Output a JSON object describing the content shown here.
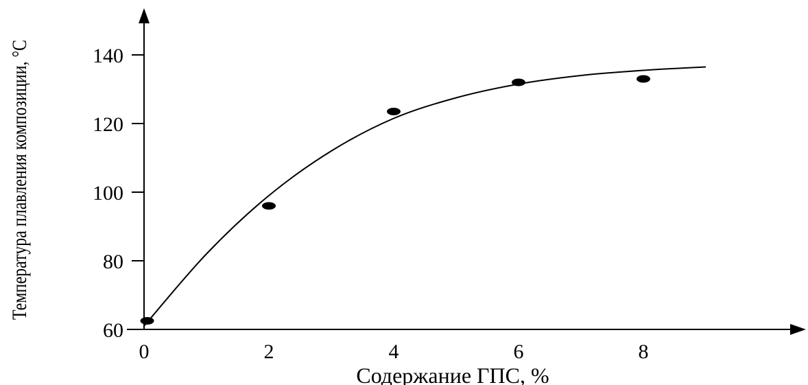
{
  "chart_data": {
    "type": "scatter",
    "title": "",
    "xlabel": "Содержание ГПС, %",
    "ylabel": "Температура плавления композиции, °С",
    "xlim": [
      0,
      9
    ],
    "ylim": [
      60,
      150
    ],
    "x_ticks": [
      0,
      2,
      4,
      6,
      8
    ],
    "x_tick_labels": [
      "0",
      "2",
      "4",
      "6",
      "8"
    ],
    "y_ticks": [
      60,
      80,
      100,
      120,
      140
    ],
    "y_tick_labels": [
      "60",
      "80",
      "100",
      "120",
      "140"
    ],
    "grid": false,
    "legend": "none",
    "series": [
      {
        "kind": "points",
        "x": [
          0.05,
          2,
          4,
          6,
          8
        ],
        "y": [
          62.5,
          96,
          123.5,
          132,
          133
        ]
      },
      {
        "kind": "fitted-curve",
        "x": [
          0,
          1,
          2,
          3,
          4,
          5,
          6,
          7,
          8,
          9
        ],
        "y": [
          61,
          82,
          99,
          112,
          121.5,
          127.5,
          131.5,
          134,
          135.5,
          136.5
        ]
      }
    ],
    "colors": {
      "axis": "#000000",
      "points": "#000000",
      "curve": "#000000"
    }
  }
}
